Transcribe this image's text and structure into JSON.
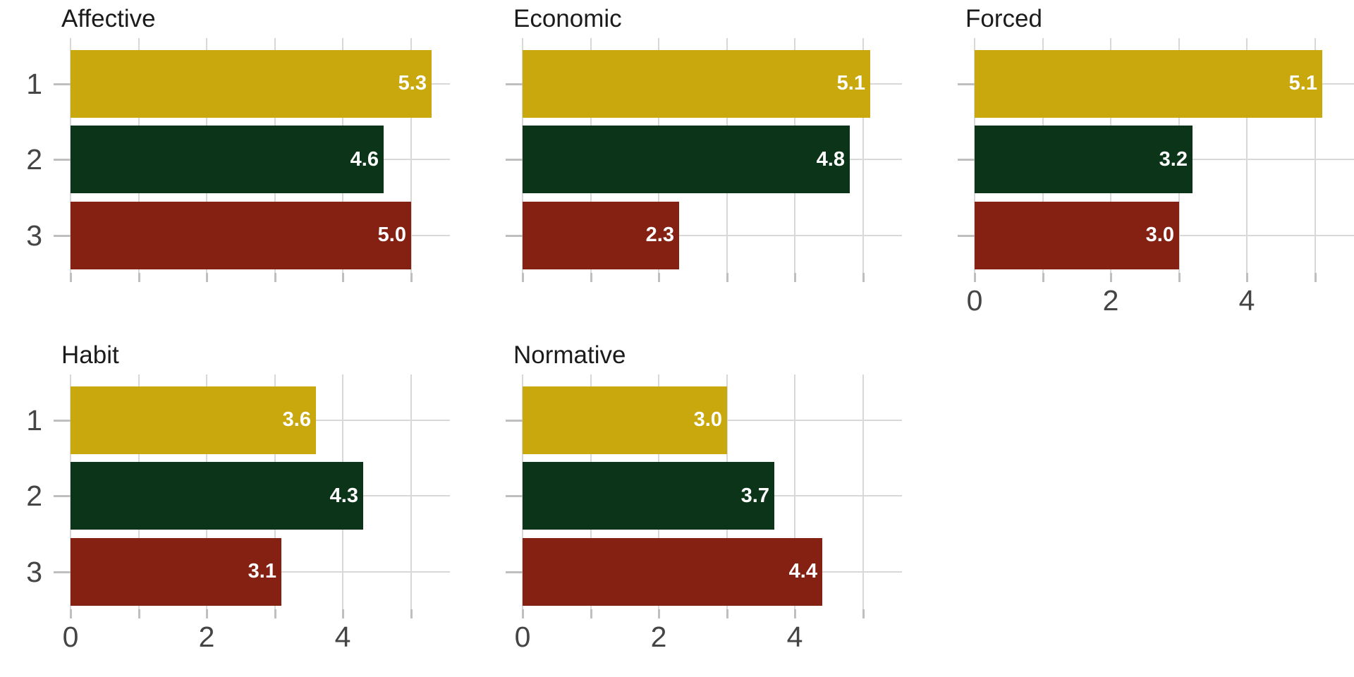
{
  "chart_data": {
    "type": "bar",
    "orientation": "horizontal",
    "layout": "facet_grid_3_columns_2_rows",
    "categories": [
      "1",
      "2",
      "3"
    ],
    "facets": [
      {
        "title": "Affective",
        "values": [
          5.3,
          4.6,
          5.0
        ],
        "labels": [
          "5.3",
          "4.6",
          "5.0"
        ]
      },
      {
        "title": "Economic",
        "values": [
          5.1,
          4.8,
          2.3
        ],
        "labels": [
          "5.1",
          "4.8",
          "2.3"
        ]
      },
      {
        "title": "Forced",
        "values": [
          5.1,
          3.2,
          3.0
        ],
        "labels": [
          "5.1",
          "3.2",
          "3.0"
        ]
      },
      {
        "title": "Habit",
        "values": [
          3.6,
          4.3,
          3.1
        ],
        "labels": [
          "3.6",
          "4.3",
          "3.1"
        ]
      },
      {
        "title": "Normative",
        "values": [
          3.0,
          3.7,
          4.4
        ],
        "labels": [
          "3.0",
          "3.7",
          "4.4"
        ]
      }
    ],
    "x_axis": {
      "lim": [
        0,
        5.57
      ],
      "gridline_values": [
        0,
        1,
        2,
        3,
        4,
        5
      ],
      "tick_label_values": [
        0,
        2,
        4
      ],
      "tick_labels": [
        "0",
        "2",
        "4"
      ]
    },
    "y_axis": {
      "labels_shown_on": "left column only",
      "tick_marks_on": "all panels"
    },
    "legend": "none",
    "grid": true,
    "bar_colors": [
      "#C9A80D",
      "#0C3418",
      "#842113"
    ],
    "style": {
      "background": "#FFFFFF",
      "grid_color": "#D8D8D8",
      "tick_color": "#BFBFBF",
      "axis_text_color": "#454545",
      "title_color": "#1B1B1B",
      "value_label_color": "#FFFFFF"
    }
  }
}
